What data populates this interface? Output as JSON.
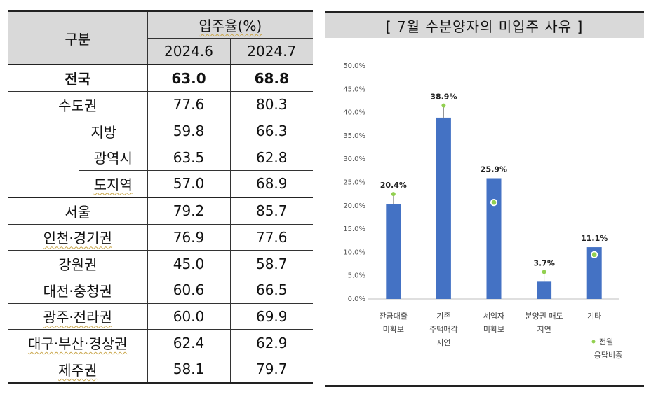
{
  "table": {
    "header": {
      "category": "구분",
      "metric": "입주율(%)",
      "periods": [
        "2024.6",
        "2024.7"
      ]
    },
    "rows": [
      {
        "name": "전국",
        "v1": "63.0",
        "v2": "68.8"
      },
      {
        "name": "수도권",
        "v1": "77.6",
        "v2": "80.3"
      },
      {
        "name": "지방",
        "v1": "59.8",
        "v2": "66.3"
      },
      {
        "name": "광역시",
        "v1": "63.5",
        "v2": "62.8"
      },
      {
        "name": "도지역",
        "v1": "57.0",
        "v2": "68.9"
      },
      {
        "name": "서울",
        "v1": "79.2",
        "v2": "85.7"
      },
      {
        "name": "인천·경기권",
        "v1": "76.9",
        "v2": "77.6"
      },
      {
        "name": "강원권",
        "v1": "45.0",
        "v2": "58.7"
      },
      {
        "name": "대전·충청권",
        "v1": "60.6",
        "v2": "66.5"
      },
      {
        "name": "광주·전라권",
        "v1": "60.0",
        "v2": "69.9"
      },
      {
        "name": "대구·부산·경상권",
        "v1": "62.4",
        "v2": "62.9"
      },
      {
        "name": "제주권",
        "v1": "58.1",
        "v2": "79.7"
      }
    ]
  },
  "chart_data": {
    "type": "bar",
    "title": "[ 7월 수분양자의 미입주 사유 ]",
    "categories": [
      [
        "잔금대출",
        "미확보"
      ],
      [
        "기존",
        "주택매각",
        "지연"
      ],
      [
        "세입자",
        "미확보"
      ],
      [
        "분양권 매도",
        "지연"
      ],
      [
        "기타"
      ]
    ],
    "series": [
      {
        "values": [
          20.4,
          38.9,
          25.9,
          3.7,
          11.1
        ]
      },
      {
        "name": "전월 응답비중",
        "values": [
          22.5,
          41.5,
          20.7,
          5.8,
          9.5
        ]
      }
    ],
    "data_labels": [
      "20.4%",
      "38.9%",
      "25.9%",
      "3.7%",
      "11.1%"
    ],
    "y_ticks": [
      "0.0%",
      "5.0%",
      "10.0%",
      "15.0%",
      "20.0%",
      "25.0%",
      "30.0%",
      "35.0%",
      "40.0%",
      "45.0%",
      "50.0%"
    ],
    "ylim": [
      0,
      50
    ],
    "legend": [
      "전월",
      "응답비중"
    ],
    "legend_position": "bottom-right",
    "grid": false,
    "colors": {
      "bar": "#4472c4",
      "marker": "#92d050"
    }
  }
}
